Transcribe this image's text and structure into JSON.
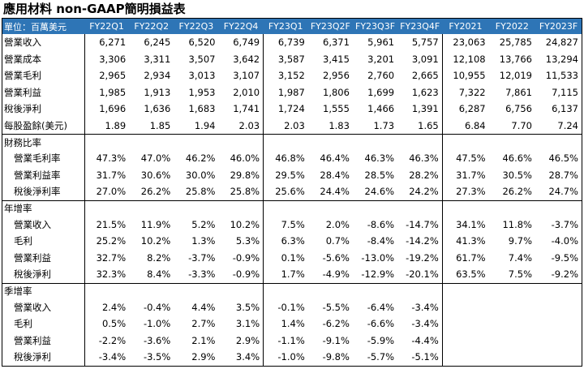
{
  "title": "應用材料 non-GAAP簡明損益表",
  "unit_label": "單位：百萬美元",
  "columns": [
    "FY22Q1",
    "FY22Q2",
    "FY22Q3",
    "FY22Q4",
    "FY23Q1",
    "FY23Q2F",
    "FY23Q3F",
    "FY23Q4F",
    "FY2021",
    "FY2022",
    "FY2023F"
  ],
  "income": [
    {
      "label": "營業收入",
      "values": [
        "6,271",
        "6,245",
        "6,520",
        "6,749",
        "6,739",
        "6,371",
        "5,961",
        "5,757",
        "23,063",
        "25,785",
        "24,827"
      ]
    },
    {
      "label": "營業成本",
      "values": [
        "3,306",
        "3,311",
        "3,507",
        "3,642",
        "3,587",
        "3,415",
        "3,201",
        "3,091",
        "12,108",
        "13,766",
        "13,294"
      ]
    },
    {
      "label": "營業毛利",
      "values": [
        "2,965",
        "2,934",
        "3,013",
        "3,107",
        "3,152",
        "2,956",
        "2,760",
        "2,665",
        "10,955",
        "12,019",
        "11,533"
      ]
    },
    {
      "label": "營業利益",
      "values": [
        "1,985",
        "1,913",
        "1,953",
        "2,010",
        "1,987",
        "1,806",
        "1,699",
        "1,623",
        "7,322",
        "7,861",
        "7,115"
      ]
    },
    {
      "label": "稅後淨利",
      "values": [
        "1,696",
        "1,636",
        "1,683",
        "1,741",
        "1,724",
        "1,555",
        "1,466",
        "1,391",
        "6,287",
        "6,756",
        "6,137"
      ]
    },
    {
      "label": "每股盈餘(美元)",
      "values": [
        "1.89",
        "1.85",
        "1.94",
        "2.03",
        "2.03",
        "1.83",
        "1.73",
        "1.65",
        "6.84",
        "7.70",
        "7.24"
      ]
    }
  ],
  "ratios": {
    "header": "財務比率",
    "rows": [
      {
        "label": "營業毛利率",
        "values": [
          "47.3%",
          "47.0%",
          "46.2%",
          "46.0%",
          "46.8%",
          "46.4%",
          "46.3%",
          "46.3%",
          "47.5%",
          "46.6%",
          "46.5%"
        ]
      },
      {
        "label": "營業利益率",
        "values": [
          "31.7%",
          "30.6%",
          "30.0%",
          "29.8%",
          "29.5%",
          "28.4%",
          "28.5%",
          "28.2%",
          "31.7%",
          "30.5%",
          "28.7%"
        ]
      },
      {
        "label": "稅後淨利率",
        "values": [
          "27.0%",
          "26.2%",
          "25.8%",
          "25.8%",
          "25.6%",
          "24.4%",
          "24.6%",
          "24.2%",
          "27.3%",
          "26.2%",
          "24.7%"
        ]
      }
    ]
  },
  "yoy": {
    "header": "年增率",
    "rows": [
      {
        "label": "營業收入",
        "values": [
          "21.5%",
          "11.9%",
          "5.2%",
          "10.2%",
          "7.5%",
          "2.0%",
          "-8.6%",
          "-14.7%",
          "34.1%",
          "11.8%",
          "-3.7%"
        ]
      },
      {
        "label": "毛利",
        "values": [
          "25.2%",
          "10.2%",
          "1.3%",
          "5.3%",
          "6.3%",
          "0.7%",
          "-8.4%",
          "-14.2%",
          "41.3%",
          "9.7%",
          "-4.0%"
        ]
      },
      {
        "label": "營業利益",
        "values": [
          "32.7%",
          "8.2%",
          "-3.7%",
          "-0.9%",
          "0.1%",
          "-5.6%",
          "-13.0%",
          "-19.2%",
          "61.7%",
          "7.4%",
          "-9.5%"
        ]
      },
      {
        "label": "稅後淨利",
        "values": [
          "32.3%",
          "8.4%",
          "-3.3%",
          "-0.9%",
          "1.7%",
          "-4.9%",
          "-12.9%",
          "-20.1%",
          "63.5%",
          "7.5%",
          "-9.2%"
        ]
      }
    ]
  },
  "qoq": {
    "header": "季增率",
    "rows": [
      {
        "label": "營業收入",
        "values": [
          "2.4%",
          "-0.4%",
          "4.4%",
          "3.5%",
          "-0.1%",
          "-5.5%",
          "-6.4%",
          "-3.4%",
          "",
          "",
          ""
        ]
      },
      {
        "label": "毛利",
        "values": [
          "0.5%",
          "-1.0%",
          "2.7%",
          "3.1%",
          "1.4%",
          "-6.2%",
          "-6.6%",
          "-3.4%",
          "",
          "",
          ""
        ]
      },
      {
        "label": "營業利益",
        "values": [
          "-2.2%",
          "-3.6%",
          "2.1%",
          "2.9%",
          "-1.1%",
          "-9.1%",
          "-5.9%",
          "-4.4%",
          "",
          "",
          ""
        ]
      },
      {
        "label": "稅後淨利",
        "values": [
          "-3.4%",
          "-3.5%",
          "2.9%",
          "3.4%",
          "-1.0%",
          "-9.8%",
          "-5.7%",
          "-5.1%",
          "",
          "",
          ""
        ]
      }
    ]
  }
}
